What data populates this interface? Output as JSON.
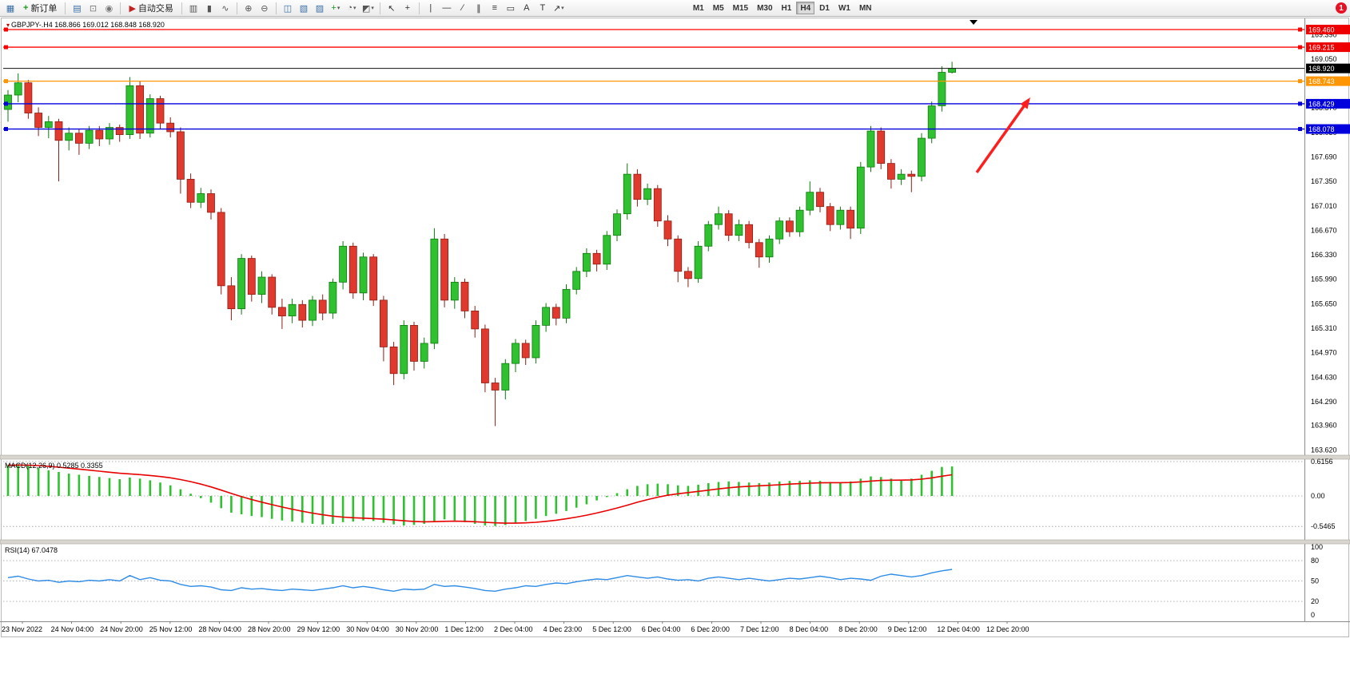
{
  "toolbar": {
    "new_order_label": "新订单",
    "auto_trading_label": "自动交易",
    "timeframes": [
      "M1",
      "M5",
      "M15",
      "M30",
      "H1",
      "H4",
      "D1",
      "W1",
      "MN"
    ],
    "active_timeframe": "H4",
    "notification_count": "1",
    "items": [
      {
        "type": "icon",
        "name": "new-chart-icon",
        "glyph": "▦",
        "color": "#3a6ea5"
      },
      {
        "type": "button",
        "name": "new-order-button",
        "label": "新订单",
        "glyph": "+",
        "color": "#1a9c1a"
      },
      {
        "type": "sep"
      },
      {
        "type": "icon",
        "name": "print-icon",
        "glyph": "▤",
        "color": "#3a6ea5"
      },
      {
        "type": "icon",
        "name": "preview-icon",
        "glyph": "⊡",
        "color": "#777777"
      },
      {
        "type": "icon",
        "name": "sound-icon",
        "glyph": "◉",
        "color": "#777777"
      },
      {
        "type": "sep"
      },
      {
        "type": "button",
        "name": "auto-trading-button",
        "label": "自动交易",
        "glyph": "▶",
        "color": "#c22222"
      },
      {
        "type": "sep"
      },
      {
        "type": "icon",
        "name": "bar-chart-icon",
        "glyph": "▥",
        "color": "#555555"
      },
      {
        "type": "icon",
        "name": "candlestick-chart-icon",
        "glyph": "▮",
        "color": "#555555"
      },
      {
        "type": "icon",
        "name": "line-chart-icon",
        "glyph": "∿",
        "color": "#555555"
      },
      {
        "type": "sep"
      },
      {
        "type": "icon",
        "name": "zoom-in-icon",
        "glyph": "⊕",
        "color": "#555555"
      },
      {
        "type": "icon",
        "name": "zoom-out-icon",
        "glyph": "⊖",
        "color": "#555555"
      },
      {
        "type": "sep"
      },
      {
        "type": "icon",
        "name": "tile-windows-icon",
        "glyph": "◫",
        "color": "#3a6ea5"
      },
      {
        "type": "icon",
        "name": "arrange-windows-icon",
        "glyph": "▧",
        "color": "#3a6ea5"
      },
      {
        "type": "icon",
        "name": "cascade-windows-icon",
        "glyph": "▨",
        "color": "#3a6ea5"
      },
      {
        "type": "icon",
        "name": "add-indicator-icon",
        "glyph": "+",
        "color": "#1a9c1a",
        "caret": true
      },
      {
        "type": "icon",
        "name": "period-selector-icon",
        "glyph": "◔",
        "color": "#555555",
        "caret": true
      },
      {
        "type": "icon",
        "name": "template-selector-icon",
        "glyph": "◩",
        "color": "#555555",
        "caret": true
      },
      {
        "type": "sep"
      },
      {
        "type": "icon",
        "name": "cursor-icon",
        "glyph": "↖",
        "color": "#333333"
      },
      {
        "type": "icon",
        "name": "crosshair-icon",
        "glyph": "+",
        "color": "#333333"
      },
      {
        "type": "sep"
      },
      {
        "type": "icon",
        "name": "vertical-line-icon",
        "glyph": "|",
        "color": "#333333"
      },
      {
        "type": "icon",
        "name": "horizontal-line-icon",
        "glyph": "—",
        "color": "#333333"
      },
      {
        "type": "icon",
        "name": "trendline-icon",
        "glyph": "∕",
        "color": "#333333"
      },
      {
        "type": "icon",
        "name": "channel-icon",
        "glyph": "∥",
        "color": "#333333"
      },
      {
        "type": "icon",
        "name": "fibonacci-icon",
        "glyph": "≡",
        "color": "#333333"
      },
      {
        "type": "icon",
        "name": "shapes-icon",
        "glyph": "▭",
        "color": "#333333"
      },
      {
        "type": "icon",
        "name": "text-icon",
        "glyph": "A",
        "color": "#333333"
      },
      {
        "type": "icon",
        "name": "label-icon",
        "glyph": "T",
        "color": "#333333"
      },
      {
        "type": "icon",
        "name": "arrow-tool-icon",
        "glyph": "↗",
        "color": "#333333",
        "caret": true
      },
      {
        "type": "gap",
        "w": 150
      },
      {
        "type": "tfgroup"
      },
      {
        "type": "flex"
      },
      {
        "type": "badge",
        "name": "notification-badge",
        "label": "1"
      }
    ]
  },
  "chart": {
    "symbol_label": "GBPJPY-.H4",
    "ohlc_label": "168.866 169.012 168.848 168.920",
    "indicator_labels": {
      "macd": "MACD(12,26,9) 0.5285 0.3355",
      "rsi": "RSI(14) 67.0478"
    },
    "price_axis": {
      "ticks": [
        "169.390",
        "169.050",
        "168.710",
        "168.370",
        "168.030",
        "167.690",
        "167.350",
        "167.010",
        "166.670",
        "166.330",
        "165.990",
        "165.650",
        "165.310",
        "164.970",
        "164.630",
        "164.290",
        "163.960",
        "163.620"
      ],
      "badges": [
        {
          "label": "169.460",
          "price": 169.46,
          "bg": "#ee0000"
        },
        {
          "label": "169.215",
          "price": 169.215,
          "bg": "#ee0000"
        },
        {
          "label": "168.920",
          "price": 168.92,
          "bg": "#000000"
        },
        {
          "label": "168.743",
          "price": 168.743,
          "bg": "#ff9500"
        },
        {
          "label": "168.429",
          "price": 168.429,
          "bg": "#0000dd"
        },
        {
          "label": "168.078",
          "price": 168.078,
          "bg": "#0000dd"
        }
      ]
    },
    "hlines": [
      {
        "price": 169.46,
        "color": "#ff0000",
        "handles": true
      },
      {
        "price": 169.215,
        "color": "#ff0000",
        "handles": true
      },
      {
        "price": 168.92,
        "color": "#111111",
        "bid": true
      },
      {
        "price": 168.743,
        "color": "#ff9500",
        "handles": true
      },
      {
        "price": 168.429,
        "color": "#0000dd",
        "handles": true
      },
      {
        "price": 168.078,
        "color": "#0000dd",
        "handles": true
      }
    ],
    "macd_axis": [
      "0.6156",
      "0.00",
      "-0.5465"
    ],
    "rsi_axis": [
      "100",
      "80",
      "50",
      "20",
      "0"
    ],
    "time_labels": [
      "23 Nov 2022",
      "24 Nov 04:00",
      "24 Nov 20:00",
      "25 Nov 12:00",
      "28 Nov 04:00",
      "28 Nov 20:00",
      "29 Nov 12:00",
      "30 Nov 04:00",
      "30 Nov 20:00",
      "1 Dec 12:00",
      "2 Dec 04:00",
      "4 Dec 23:00",
      "5 Dec 12:00",
      "6 Dec 04:00",
      "6 Dec 20:00",
      "7 Dec 12:00",
      "8 Dec 04:00",
      "8 Dec 20:00",
      "9 Dec 12:00",
      "12 Dec 04:00",
      "12 Dec 20:00"
    ],
    "arrow": {
      "color": "#ff1e1e",
      "direction": "up-right"
    }
  },
  "chart_data": {
    "type": "candlestick",
    "symbol": "GBPJPY",
    "timeframe": "H4",
    "current_ohlc": {
      "open": 168.866,
      "high": 169.012,
      "low": 168.848,
      "close": 168.92
    },
    "price_range": [
      163.62,
      169.46
    ],
    "candles_ohlc": [
      [
        168.35,
        168.62,
        168.18,
        168.55
      ],
      [
        168.55,
        168.85,
        168.45,
        168.72
      ],
      [
        168.72,
        168.76,
        168.22,
        168.3
      ],
      [
        168.3,
        168.38,
        167.98,
        168.1
      ],
      [
        168.1,
        168.26,
        167.95,
        168.18
      ],
      [
        168.18,
        168.22,
        167.35,
        167.92
      ],
      [
        167.92,
        168.1,
        167.78,
        168.02
      ],
      [
        168.02,
        168.08,
        167.72,
        167.88
      ],
      [
        167.88,
        168.12,
        167.8,
        168.06
      ],
      [
        168.06,
        168.12,
        167.84,
        167.94
      ],
      [
        167.94,
        168.16,
        167.86,
        168.1
      ],
      [
        168.1,
        168.14,
        167.9,
        168.0
      ],
      [
        168.0,
        168.8,
        167.94,
        168.68
      ],
      [
        168.68,
        168.74,
        167.94,
        168.02
      ],
      [
        168.02,
        168.56,
        167.96,
        168.5
      ],
      [
        168.5,
        168.54,
        168.08,
        168.16
      ],
      [
        168.16,
        168.24,
        167.96,
        168.04
      ],
      [
        168.04,
        168.1,
        167.18,
        167.38
      ],
      [
        167.38,
        167.46,
        166.98,
        167.06
      ],
      [
        167.06,
        167.26,
        166.98,
        167.18
      ],
      [
        167.18,
        167.24,
        166.82,
        166.92
      ],
      [
        166.92,
        166.98,
        165.78,
        165.9
      ],
      [
        165.9,
        166.02,
        165.42,
        165.58
      ],
      [
        165.58,
        166.34,
        165.5,
        166.28
      ],
      [
        166.28,
        166.32,
        165.68,
        165.78
      ],
      [
        165.78,
        166.1,
        165.66,
        166.02
      ],
      [
        166.02,
        166.06,
        165.5,
        165.6
      ],
      [
        165.6,
        165.72,
        165.3,
        165.48
      ],
      [
        165.48,
        165.72,
        165.38,
        165.64
      ],
      [
        165.64,
        165.7,
        165.32,
        165.42
      ],
      [
        165.42,
        165.76,
        165.34,
        165.7
      ],
      [
        165.7,
        165.78,
        165.42,
        165.52
      ],
      [
        165.52,
        166.0,
        165.44,
        165.95
      ],
      [
        165.95,
        166.52,
        165.85,
        166.45
      ],
      [
        166.45,
        166.5,
        165.72,
        165.8
      ],
      [
        165.8,
        166.36,
        165.7,
        166.3
      ],
      [
        166.3,
        166.34,
        165.62,
        165.7
      ],
      [
        165.7,
        165.76,
        164.85,
        165.05
      ],
      [
        165.05,
        165.12,
        164.52,
        164.68
      ],
      [
        164.68,
        165.42,
        164.6,
        165.35
      ],
      [
        165.35,
        165.4,
        164.72,
        164.85
      ],
      [
        164.85,
        165.18,
        164.75,
        165.1
      ],
      [
        165.1,
        166.7,
        165.02,
        166.55
      ],
      [
        166.55,
        166.62,
        165.6,
        165.7
      ],
      [
        165.7,
        166.02,
        165.58,
        165.95
      ],
      [
        165.95,
        166.0,
        165.45,
        165.55
      ],
      [
        165.55,
        165.62,
        165.18,
        165.3
      ],
      [
        165.3,
        165.36,
        164.42,
        164.55
      ],
      [
        164.55,
        164.62,
        163.95,
        164.45
      ],
      [
        164.45,
        164.88,
        164.32,
        164.82
      ],
      [
        164.82,
        165.16,
        164.7,
        165.1
      ],
      [
        165.1,
        165.15,
        164.8,
        164.9
      ],
      [
        164.9,
        165.42,
        164.82,
        165.35
      ],
      [
        165.35,
        165.66,
        165.26,
        165.6
      ],
      [
        165.6,
        165.65,
        165.35,
        165.45
      ],
      [
        165.45,
        165.92,
        165.38,
        165.85
      ],
      [
        165.85,
        166.16,
        165.78,
        166.1
      ],
      [
        166.1,
        166.42,
        166.02,
        166.35
      ],
      [
        166.35,
        166.4,
        166.1,
        166.2
      ],
      [
        166.2,
        166.66,
        166.12,
        166.6
      ],
      [
        166.6,
        166.96,
        166.52,
        166.9
      ],
      [
        166.9,
        167.6,
        166.82,
        167.45
      ],
      [
        167.45,
        167.52,
        167.0,
        167.1
      ],
      [
        167.1,
        167.32,
        167.02,
        167.25
      ],
      [
        167.25,
        167.3,
        166.72,
        166.8
      ],
      [
        166.8,
        166.88,
        166.45,
        166.55
      ],
      [
        166.55,
        166.6,
        165.95,
        166.1
      ],
      [
        166.1,
        166.16,
        165.88,
        166.0
      ],
      [
        166.0,
        166.52,
        165.94,
        166.45
      ],
      [
        166.45,
        166.8,
        166.38,
        166.75
      ],
      [
        166.75,
        167.0,
        166.68,
        166.9
      ],
      [
        166.9,
        166.95,
        166.52,
        166.6
      ],
      [
        166.6,
        166.82,
        166.52,
        166.75
      ],
      [
        166.75,
        166.8,
        166.42,
        166.5
      ],
      [
        166.5,
        166.55,
        166.15,
        166.3
      ],
      [
        166.3,
        166.6,
        166.22,
        166.55
      ],
      [
        166.55,
        166.85,
        166.48,
        166.8
      ],
      [
        166.8,
        166.85,
        166.58,
        166.65
      ],
      [
        166.65,
        167.0,
        166.58,
        166.95
      ],
      [
        166.95,
        167.35,
        166.88,
        167.2
      ],
      [
        167.2,
        167.26,
        166.92,
        167.0
      ],
      [
        167.0,
        167.05,
        166.66,
        166.75
      ],
      [
        166.75,
        167.0,
        166.68,
        166.95
      ],
      [
        166.95,
        167.0,
        166.55,
        166.7
      ],
      [
        166.7,
        167.62,
        166.62,
        167.55
      ],
      [
        167.55,
        168.12,
        167.48,
        168.05
      ],
      [
        168.05,
        168.1,
        167.52,
        167.6
      ],
      [
        167.6,
        167.66,
        167.25,
        167.38
      ],
      [
        167.38,
        167.52,
        167.3,
        167.45
      ],
      [
        167.45,
        167.5,
        167.2,
        167.42
      ],
      [
        167.42,
        168.02,
        167.35,
        167.95
      ],
      [
        167.95,
        168.46,
        167.88,
        168.4
      ],
      [
        168.4,
        168.95,
        168.32,
        168.866
      ],
      [
        168.866,
        169.012,
        168.848,
        168.92
      ]
    ],
    "macd": {
      "params": "12,26,9",
      "main_value": 0.5285,
      "signal_value": 0.3355,
      "axis_levels": [
        0.6156,
        0,
        -0.5465
      ],
      "histogram": [
        0.55,
        0.57,
        0.54,
        0.5,
        0.46,
        0.43,
        0.4,
        0.38,
        0.36,
        0.34,
        0.32,
        0.3,
        0.33,
        0.31,
        0.28,
        0.24,
        0.19,
        0.12,
        0.04,
        -0.04,
        -0.12,
        -0.22,
        -0.3,
        -0.33,
        -0.36,
        -0.38,
        -0.41,
        -0.44,
        -0.46,
        -0.48,
        -0.5,
        -0.51,
        -0.5,
        -0.47,
        -0.46,
        -0.44,
        -0.45,
        -0.48,
        -0.51,
        -0.53,
        -0.52,
        -0.5,
        -0.45,
        -0.42,
        -0.44,
        -0.47,
        -0.5,
        -0.53,
        -0.54,
        -0.52,
        -0.49,
        -0.45,
        -0.41,
        -0.36,
        -0.32,
        -0.27,
        -0.21,
        -0.15,
        -0.08,
        -0.02,
        0.05,
        0.12,
        0.18,
        0.21,
        0.22,
        0.21,
        0.19,
        0.18,
        0.2,
        0.23,
        0.25,
        0.26,
        0.25,
        0.24,
        0.23,
        0.24,
        0.26,
        0.27,
        0.27,
        0.28,
        0.27,
        0.25,
        0.24,
        0.26,
        0.31,
        0.35,
        0.34,
        0.31,
        0.29,
        0.31,
        0.38,
        0.45,
        0.52,
        0.5285
      ]
    },
    "rsi": {
      "period": 14,
      "current_value": 67.0478,
      "values": [
        55,
        57,
        53,
        50,
        51,
        48,
        50,
        49,
        51,
        50,
        52,
        50,
        58,
        52,
        55,
        51,
        50,
        45,
        42,
        43,
        41,
        37,
        36,
        40,
        38,
        39,
        37,
        36,
        38,
        37,
        36,
        38,
        40,
        43,
        40,
        42,
        40,
        37,
        35,
        38,
        37,
        38,
        45,
        42,
        43,
        41,
        39,
        36,
        35,
        38,
        40,
        43,
        42,
        45,
        47,
        46,
        49,
        51,
        53,
        52,
        55,
        58,
        56,
        54,
        56,
        53,
        51,
        52,
        50,
        54,
        56,
        54,
        52,
        54,
        52,
        50,
        52,
        54,
        53,
        55,
        57,
        55,
        52,
        54,
        53,
        51,
        57,
        60,
        58,
        56,
        58,
        62,
        65,
        67.05
      ]
    }
  },
  "colors": {
    "candle_up": "#2fc12f",
    "candle_up_border": "#0f7a0f",
    "candle_down": "#e03a2e",
    "candle_down_border": "#8f1d14",
    "macd_histogram": "#2fc12f",
    "macd_signal": "#e80000",
    "rsi_line": "#2e8be6"
  }
}
